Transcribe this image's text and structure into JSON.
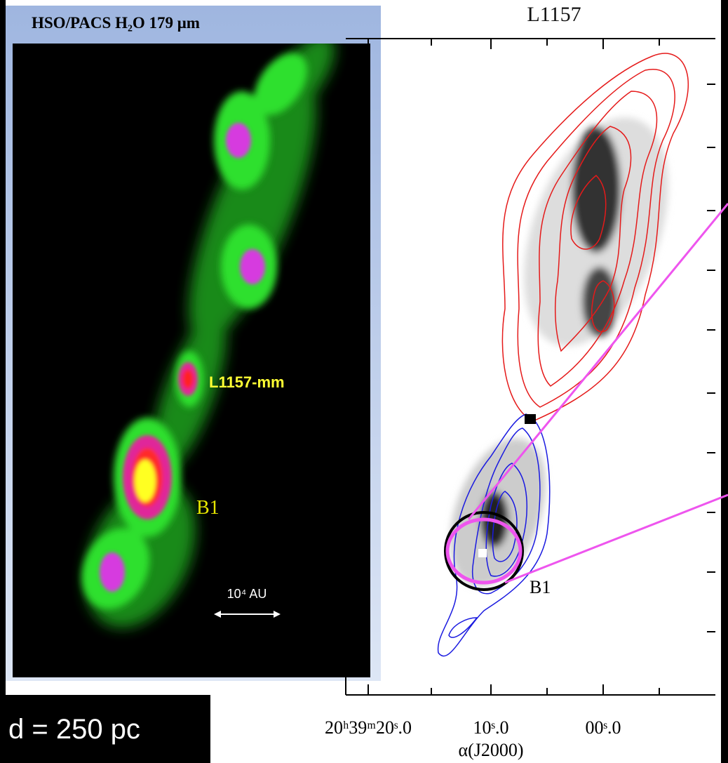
{
  "left_panel": {
    "title": "HSO/PACS  H₂O 179 μm",
    "labels": [
      "L1157-mm",
      "B1"
    ],
    "scale_bar": "10⁴ AU"
  },
  "distance": "d = 250 pc",
  "right_panel": {
    "title": "L1157",
    "source_label": "B1",
    "x_tick_labels": [
      "20ʰ39ᵐ20ˢ.0",
      "10ˢ.0",
      "00ˢ.0"
    ],
    "x_axis_label": "α(J2000)"
  }
}
